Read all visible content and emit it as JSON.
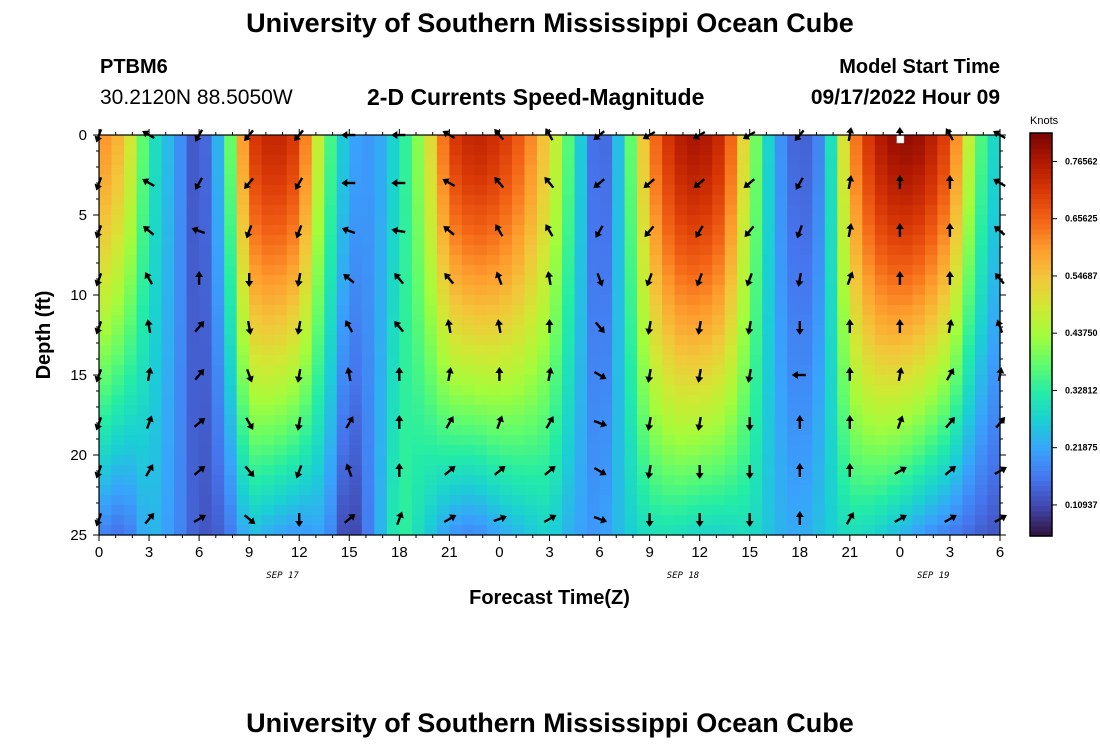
{
  "header": {
    "title": "University of Southern Mississippi Ocean Cube",
    "station_id": "PTBM6",
    "station_coords": "30.2120N  88.5050W",
    "plot_title": "2-D Currents Speed-Magnitude",
    "model_start_label": "Model Start Time",
    "model_start_value": "09/17/2022 Hour 09"
  },
  "footer": {
    "title": "University of Southern Mississippi Ocean Cube"
  },
  "chart_data": {
    "type": "heatmap",
    "title": "2-D Currents Speed-Magnitude",
    "xlabel": "Forecast Time(Z)",
    "ylabel": "Depth (ft)",
    "xlim": [
      0,
      54
    ],
    "ylim": [
      0,
      25
    ],
    "x_ticks": [
      0,
      3,
      6,
      9,
      12,
      15,
      18,
      21,
      24,
      27,
      30,
      33,
      36,
      39,
      42,
      45,
      48,
      51,
      54
    ],
    "x_tick_labels": [
      "0",
      "3",
      "6",
      "9",
      "12",
      "15",
      "18",
      "21",
      "0",
      "3",
      "6",
      "9",
      "12",
      "15",
      "18",
      "21",
      "0",
      "3",
      "6"
    ],
    "y_ticks": [
      0,
      5,
      10,
      15,
      20,
      25
    ],
    "y_tick_labels": [
      "0",
      "5",
      "10",
      "15",
      "20",
      "25"
    ],
    "date_labels": [
      {
        "x": 11,
        "label": "SEP 17"
      },
      {
        "x": 35,
        "label": "SEP 18"
      },
      {
        "x": 50,
        "label": "SEP 19"
      }
    ],
    "colorbar": {
      "label": "Knots",
      "min": 0.05,
      "max": 0.82,
      "ticks": [
        0.10937,
        0.21875,
        0.32812,
        0.4375,
        0.54687,
        0.65625,
        0.76562
      ],
      "tick_labels": [
        "0.10937",
        "0.21875",
        "0.32812",
        "0.43750",
        "0.54687",
        "0.65625",
        "0.76562"
      ],
      "colors": [
        "#30123b",
        "#4145ab",
        "#4675ed",
        "#39a2fc",
        "#1bcfd4",
        "#24eca6",
        "#61fc6c",
        "#a4fc3b",
        "#d1e834",
        "#f3c63a",
        "#fe9b2d",
        "#f36315",
        "#d93806",
        "#b11901",
        "#7a0403"
      ]
    },
    "speed_profiles": [
      {
        "t": 0,
        "surface": 0.62,
        "bottom": 0.18
      },
      {
        "t": 1.5,
        "surface": 0.55,
        "bottom": 0.15
      },
      {
        "t": 3,
        "surface": 0.32,
        "bottom": 0.25
      },
      {
        "t": 4.5,
        "surface": 0.22,
        "bottom": 0.2
      },
      {
        "t": 6,
        "surface": 0.1,
        "bottom": 0.12
      },
      {
        "t": 7.5,
        "surface": 0.28,
        "bottom": 0.14
      },
      {
        "t": 9,
        "surface": 0.7,
        "bottom": 0.25
      },
      {
        "t": 10.5,
        "surface": 0.75,
        "bottom": 0.22
      },
      {
        "t": 12,
        "surface": 0.7,
        "bottom": 0.2
      },
      {
        "t": 13.5,
        "surface": 0.4,
        "bottom": 0.22
      },
      {
        "t": 15,
        "surface": 0.22,
        "bottom": 0.08
      },
      {
        "t": 16.5,
        "surface": 0.2,
        "bottom": 0.2
      },
      {
        "t": 18,
        "surface": 0.3,
        "bottom": 0.35
      },
      {
        "t": 19.5,
        "surface": 0.45,
        "bottom": 0.28
      },
      {
        "t": 21,
        "surface": 0.7,
        "bottom": 0.2
      },
      {
        "t": 22.5,
        "surface": 0.75,
        "bottom": 0.18
      },
      {
        "t": 24,
        "surface": 0.72,
        "bottom": 0.22
      },
      {
        "t": 25.5,
        "surface": 0.65,
        "bottom": 0.25
      },
      {
        "t": 27,
        "surface": 0.52,
        "bottom": 0.28
      },
      {
        "t": 28.5,
        "surface": 0.32,
        "bottom": 0.22
      },
      {
        "t": 30,
        "surface": 0.1,
        "bottom": 0.2
      },
      {
        "t": 31.5,
        "surface": 0.3,
        "bottom": 0.26
      },
      {
        "t": 33,
        "surface": 0.62,
        "bottom": 0.3
      },
      {
        "t": 34.5,
        "surface": 0.75,
        "bottom": 0.3
      },
      {
        "t": 36,
        "surface": 0.78,
        "bottom": 0.28
      },
      {
        "t": 37.5,
        "surface": 0.72,
        "bottom": 0.28
      },
      {
        "t": 39,
        "surface": 0.45,
        "bottom": 0.3
      },
      {
        "t": 40.5,
        "surface": 0.22,
        "bottom": 0.24
      },
      {
        "t": 42,
        "surface": 0.12,
        "bottom": 0.22
      },
      {
        "t": 43.5,
        "surface": 0.2,
        "bottom": 0.26
      },
      {
        "t": 45,
        "surface": 0.6,
        "bottom": 0.3
      },
      {
        "t": 46.5,
        "surface": 0.75,
        "bottom": 0.28
      },
      {
        "t": 48,
        "surface": 0.8,
        "bottom": 0.24
      },
      {
        "t": 49.5,
        "surface": 0.78,
        "bottom": 0.2
      },
      {
        "t": 51,
        "surface": 0.68,
        "bottom": 0.17
      },
      {
        "t": 52.5,
        "surface": 0.4,
        "bottom": 0.14
      },
      {
        "t": 54,
        "surface": 0.25,
        "bottom": 0.12
      }
    ],
    "vector_times": [
      0,
      3,
      6,
      9,
      12,
      15,
      18,
      21,
      24,
      27,
      30,
      33,
      36,
      39,
      42,
      45,
      48,
      51,
      54
    ],
    "vector_depths": [
      0,
      3,
      6,
      9,
      12,
      15,
      18,
      21,
      24
    ],
    "vector_directions_deg": [
      [
        200,
        200,
        200,
        200,
        200,
        200,
        200,
        200,
        200
      ],
      [
        300,
        300,
        310,
        330,
        350,
        10,
        20,
        30,
        40
      ],
      [
        210,
        210,
        290,
        0,
        40,
        40,
        50,
        50,
        60
      ],
      [
        220,
        220,
        200,
        180,
        170,
        160,
        150,
        140,
        130
      ],
      [
        220,
        210,
        200,
        190,
        190,
        190,
        190,
        200,
        180
      ],
      [
        270,
        270,
        290,
        310,
        330,
        350,
        30,
        340,
        50
      ],
      [
        270,
        270,
        280,
        320,
        320,
        0,
        0,
        0,
        20
      ],
      [
        300,
        300,
        310,
        320,
        350,
        10,
        30,
        50,
        60
      ],
      [
        320,
        320,
        330,
        340,
        350,
        0,
        20,
        50,
        70
      ],
      [
        330,
        320,
        330,
        350,
        0,
        10,
        30,
        50,
        60
      ],
      [
        230,
        230,
        210,
        160,
        140,
        120,
        110,
        120,
        110
      ],
      [
        240,
        230,
        220,
        200,
        190,
        190,
        190,
        190,
        180
      ],
      [
        240,
        230,
        210,
        200,
        190,
        190,
        190,
        180,
        180
      ],
      [
        240,
        230,
        220,
        200,
        190,
        190,
        180,
        180,
        180
      ],
      [
        220,
        210,
        200,
        190,
        180,
        270,
        0,
        0,
        0
      ],
      [
        10,
        10,
        10,
        20,
        0,
        0,
        0,
        0,
        30
      ],
      [
        0,
        0,
        0,
        0,
        0,
        10,
        20,
        60,
        60
      ],
      [
        330,
        0,
        0,
        0,
        10,
        30,
        40,
        50,
        60
      ],
      [
        300,
        300,
        310,
        320,
        340,
        10,
        40,
        60,
        60
      ]
    ]
  }
}
